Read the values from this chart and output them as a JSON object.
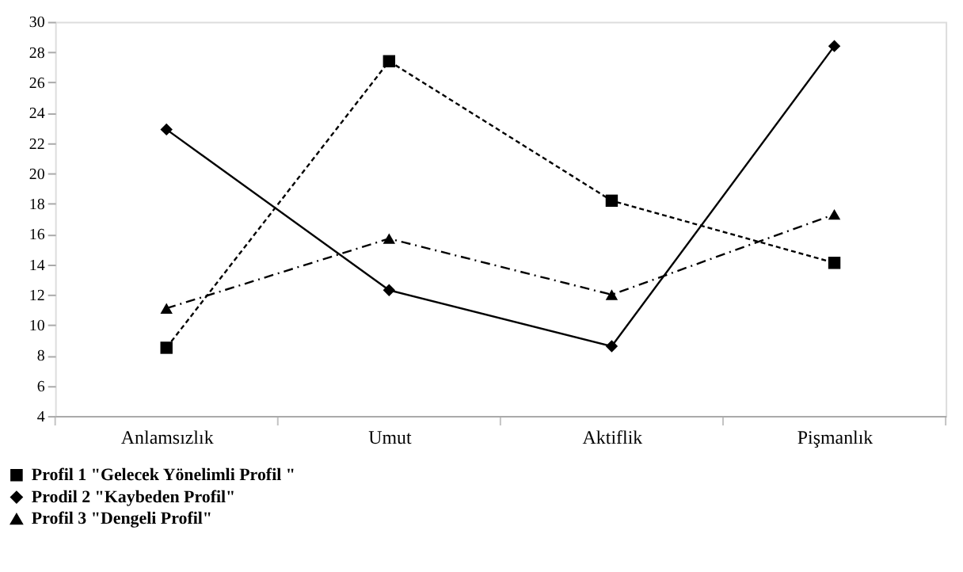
{
  "chart_data": {
    "type": "line",
    "categories": [
      "Anlamsızlık",
      "Umut",
      "Aktiflik",
      "Pişmanlık"
    ],
    "series": [
      {
        "name": "Profil 1 \"Gelecek Yönelimli Profil \"",
        "color": "#000000",
        "values": [
          8.5,
          27.4,
          18.2,
          14.1
        ],
        "marker": "square",
        "line_style": "dotted"
      },
      {
        "name": "Prodil 2  \"Kaybeden Profil\"",
        "color": "#000000",
        "values": [
          22.9,
          12.3,
          8.6,
          28.4
        ],
        "marker": "diamond",
        "line_style": "solid"
      },
      {
        "name": "Profil 3 \"Dengeli Profil\"",
        "color": "#000000",
        "values": [
          11.1,
          15.7,
          12.0,
          17.3
        ],
        "marker": "triangle",
        "line_style": "dashed"
      }
    ],
    "ylim": [
      4,
      30
    ],
    "yticks": [
      4,
      6,
      8,
      10,
      12,
      14,
      16,
      18,
      20,
      22,
      24,
      26,
      28,
      30
    ],
    "grid": false,
    "legend": "bottom left"
  }
}
